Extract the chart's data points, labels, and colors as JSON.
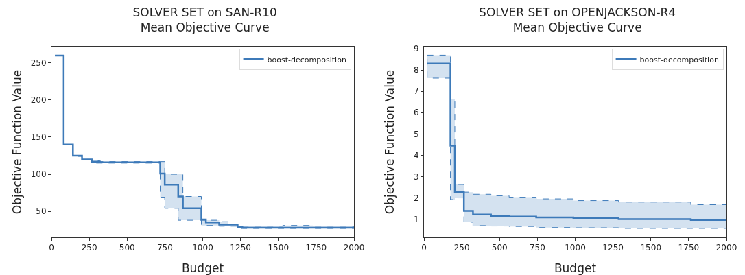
{
  "chart_data": [
    {
      "type": "step",
      "title": "SOLVER SET on SAN-R10\nMean Objective Curve",
      "xlabel": "Budget",
      "ylabel": "Objective Function Value",
      "x": [
        23,
        81,
        142,
        202,
        268,
        321,
        719,
        749,
        838,
        869,
        991,
        1021,
        1109,
        1170,
        1231,
        1262,
        1529,
        1728,
        2000
      ],
      "series": [
        {
          "name": "boost-decomposition",
          "color": "#3d7ab9",
          "values": [
            260,
            140,
            125,
            120,
            117,
            116,
            101,
            86,
            70,
            54,
            39,
            35,
            32,
            32,
            29,
            28,
            28,
            28,
            28
          ],
          "lower": [
            260,
            140,
            124,
            119,
            115,
            115,
            69,
            54,
            38,
            38,
            31,
            31,
            30,
            30,
            27,
            27,
            27,
            27,
            27
          ],
          "upper": [
            260,
            140,
            125,
            120,
            118,
            117,
            117,
            100,
            100,
            70,
            38,
            38,
            36,
            33,
            30,
            30,
            31,
            30,
            30
          ]
        }
      ],
      "xlim": [
        0,
        2000
      ],
      "xticks": [
        0,
        250,
        500,
        750,
        1000,
        1250,
        1500,
        1750,
        2000
      ],
      "ylim": [
        15,
        272
      ],
      "yticks": [
        50,
        100,
        150,
        200,
        250
      ],
      "grid": false,
      "legend": "top right",
      "line_style": "solid",
      "marker": "none"
    },
    {
      "type": "step",
      "title": "SOLVER SET on OPENJACKSON-R4\nMean Objective Curve",
      "xlabel": "Budget",
      "ylabel": "Objective Function Value",
      "x": [
        21,
        175,
        204,
        264,
        324,
        443,
        563,
        742,
        988,
        1287,
        1764,
        2000
      ],
      "series": [
        {
          "name": "boost-decomposition",
          "color": "#3d7ab9",
          "values": [
            8.3,
            4.45,
            2.28,
            1.39,
            1.22,
            1.16,
            1.12,
            1.08,
            1.04,
            1.0,
            0.96,
            0.96
          ],
          "lower": [
            7.62,
            1.92,
            2.0,
            0.86,
            0.7,
            0.68,
            0.66,
            0.61,
            0.6,
            0.57,
            0.57,
            0.57
          ],
          "upper": [
            8.7,
            6.65,
            2.63,
            2.27,
            2.17,
            2.1,
            2.03,
            1.95,
            1.87,
            1.8,
            1.68,
            1.68
          ]
        }
      ],
      "xlim": [
        0,
        2000
      ],
      "xticks": [
        0,
        250,
        500,
        750,
        1000,
        1250,
        1500,
        1750,
        2000
      ],
      "ylim": [
        0.15,
        9.1
      ],
      "yticks": [
        1,
        2,
        3,
        4,
        5,
        6,
        7,
        8,
        9
      ],
      "grid": false,
      "legend": "top right",
      "line_style": "solid",
      "marker": "none"
    }
  ]
}
